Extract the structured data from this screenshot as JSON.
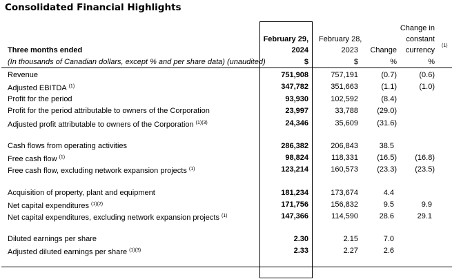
{
  "title": "Consolidated Financial Highlights",
  "header": {
    "period_label": "Three months ended",
    "units_note": "(In thousands of Canadian dollars, except % and per share data) (unaudited)",
    "col_current_line1": "February 29,",
    "col_current_line2": "2024",
    "col_current_unit": "$",
    "col_prior_line1": "February 28,",
    "col_prior_line2": "2023",
    "col_prior_unit": "$",
    "col_change": "Change",
    "col_change_unit": "%",
    "col_ccy_line1": "Change in",
    "col_ccy_line2": "constant",
    "col_ccy_line3": "currency",
    "col_ccy_unit": "%",
    "col_ccy_note": "(1)"
  },
  "rows": [
    {
      "label": "Revenue",
      "note": "",
      "current": "751,908",
      "prior": "757,191",
      "change": "(0.7)",
      "ccy": "(0.6)"
    },
    {
      "label": "Adjusted EBITDA",
      "note": "(1)",
      "current": "347,782",
      "prior": "351,663",
      "change": "(1.1)",
      "ccy": "(1.0)"
    },
    {
      "label": "Profit for the period",
      "note": "",
      "current": "93,930",
      "prior": "102,592",
      "change": "(8.4)",
      "ccy": ""
    },
    {
      "label": "Profit for the period attributable to owners of the Corporation",
      "note": "",
      "current": "23,997",
      "prior": "33,788",
      "change": "(29.0)",
      "ccy": ""
    },
    {
      "label": "Adjusted profit attributable to owners of the Corporation",
      "note": "(1)(3)",
      "current": "24,346",
      "prior": "35,609",
      "change": "(31.6)",
      "ccy": ""
    },
    null,
    {
      "label": "Cash flows from operating activities",
      "note": "",
      "current": "286,382",
      "prior": "206,843",
      "change": "38.5",
      "ccy": ""
    },
    {
      "label": "Free cash flow",
      "note": "(1)",
      "current": "98,824",
      "prior": "118,331",
      "change": "(16.5)",
      "ccy": "(16.8)"
    },
    {
      "label": "Free cash flow, excluding network expansion projects",
      "note": "(1)",
      "current": "123,214",
      "prior": "160,573",
      "change": "(23.3)",
      "ccy": "(23.5)"
    },
    null,
    {
      "label": "Acquisition of property, plant and equipment",
      "note": "",
      "current": "181,234",
      "prior": "173,674",
      "change": "4.4",
      "ccy": ""
    },
    {
      "label": "Net capital expenditures",
      "note": "(1)(2)",
      "current": "171,756",
      "prior": "156,832",
      "change": "9.5",
      "ccy": "9.9"
    },
    {
      "label": "Net capital expenditures, excluding network expansion projects",
      "note": "(1)",
      "current": "147,366",
      "prior": "114,590",
      "change": "28.6",
      "ccy": "29.1"
    },
    null,
    {
      "label": "Diluted earnings per share",
      "note": "",
      "current": "2.30",
      "prior": "2.15",
      "change": "7.0",
      "ccy": ""
    },
    {
      "label": "Adjusted diluted earnings per share",
      "note": "(1)(3)",
      "current": "2.33",
      "prior": "2.27",
      "change": "2.6",
      "ccy": ""
    }
  ]
}
